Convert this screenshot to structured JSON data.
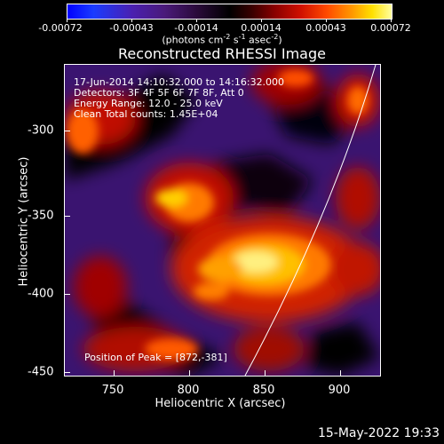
{
  "colorbar": {
    "labels": [
      "-0.00072",
      "-0.00043",
      "-0.00014",
      "0.00014",
      "0.00043",
      "0.00072"
    ],
    "units_main": "(photons cm",
    "units_exp1": "-2",
    "units_mid": " s",
    "units_exp2": "-1",
    "units_end": " asec",
    "units_exp3": "-2",
    "units_close": ")"
  },
  "title": "Reconstructed RHESSI Image",
  "info": {
    "line1": "17-Jun-2014 14:10:32.000 to 14:16:32.000",
    "line2": "Detectors: 3F 4F 5F 6F 7F 8F, Att 0",
    "line3": "Energy Range: 12.0 - 25.0 keV",
    "line4": "Clean     Total counts: 1.45E+04",
    "peak": "Position of Peak = [872,-381]"
  },
  "axes": {
    "xlabel": "Heliocentric X (arcsec)",
    "ylabel": "Heliocentric Y (arcsec)",
    "xticks": [
      "750",
      "800",
      "850",
      "900"
    ],
    "yticks": [
      "-300",
      "-350",
      "-400",
      "-450"
    ]
  },
  "footer": {
    "date": "15-May-2022 19:33"
  }
}
